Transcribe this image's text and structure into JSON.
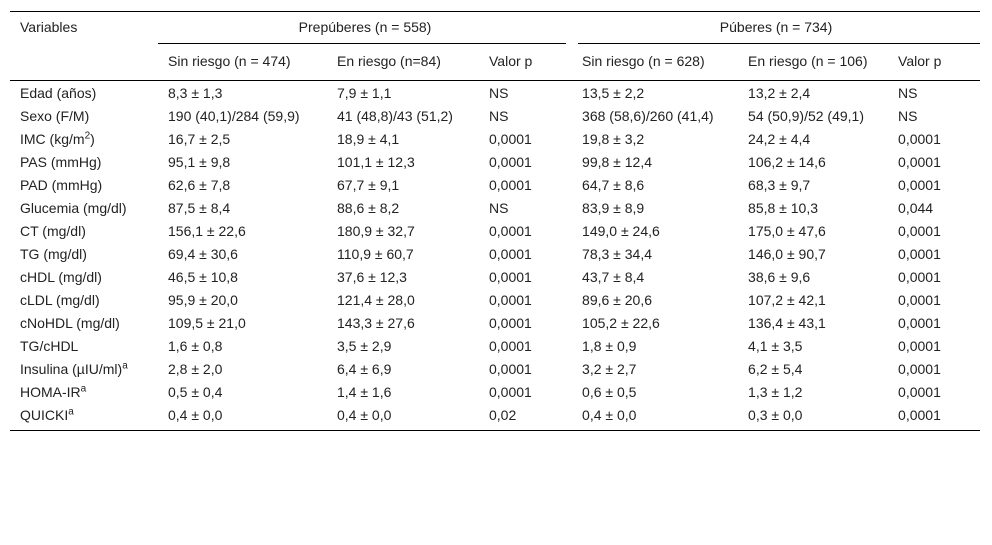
{
  "table": {
    "header": {
      "variables": "Variables",
      "groups": [
        {
          "label": "Prepúberes (n = 558)",
          "columns": [
            "Sin riesgo (n = 474)",
            "En riesgo (n=84)",
            "Valor p"
          ]
        },
        {
          "label": "Púberes (n = 734)",
          "columns": [
            "Sin riesgo (n = 628)",
            "En riesgo (n = 106)",
            "Valor p"
          ]
        }
      ]
    },
    "rows": [
      {
        "variable": {
          "text": "Edad (años)"
        },
        "cells": [
          "8,3 ± 1,3",
          "7,9 ± 1,1",
          "NS",
          "13,5 ± 2,2",
          "13,2 ± 2,4",
          "NS"
        ]
      },
      {
        "variable": {
          "text": "Sexo (F/M)"
        },
        "cells": [
          "190 (40,1)/284 (59,9)",
          "41 (48,8)/43 (51,2)",
          "NS",
          "368 (58,6)/260 (41,4)",
          "54 (50,9)/52 (49,1)",
          "NS"
        ]
      },
      {
        "variable": {
          "text": "IMC (kg/m",
          "sup": "2",
          "tail": ")"
        },
        "cells": [
          "16,7 ± 2,5",
          "18,9 ± 4,1",
          "0,0001",
          "19,8 ± 3,2",
          "24,2 ± 4,4",
          "0,0001"
        ]
      },
      {
        "variable": {
          "text": "PAS (mmHg)"
        },
        "cells": [
          "95,1 ± 9,8",
          "101,1 ± 12,3",
          "0,0001",
          "99,8 ± 12,4",
          "106,2 ± 14,6",
          "0,0001"
        ]
      },
      {
        "variable": {
          "text": "PAD (mmHg)"
        },
        "cells": [
          "62,6 ± 7,8",
          "67,7 ± 9,1",
          "0,0001",
          "64,7 ± 8,6",
          "68,3 ± 9,7",
          "0,0001"
        ]
      },
      {
        "variable": {
          "text": "Glucemia (mg/dl)"
        },
        "cells": [
          "87,5 ± 8,4",
          "88,6 ± 8,2",
          "NS",
          "83,9 ± 8,9",
          "85,8 ± 10,3",
          "0,044"
        ]
      },
      {
        "variable": {
          "text": "CT (mg/dl)"
        },
        "cells": [
          "156,1 ± 22,6",
          "180,9 ± 32,7",
          "0,0001",
          "149,0 ± 24,6",
          "175,0 ± 47,6",
          "0,0001"
        ]
      },
      {
        "variable": {
          "text": "TG (mg/dl)"
        },
        "cells": [
          "69,4 ± 30,6",
          "110,9 ± 60,7",
          "0,0001",
          "78,3 ± 34,4",
          "146,0 ± 90,7",
          "0,0001"
        ]
      },
      {
        "variable": {
          "text": "cHDL (mg/dl)"
        },
        "cells": [
          "46,5 ± 10,8",
          "37,6 ± 12,3",
          "0,0001",
          "43,7 ± 8,4",
          "38,6 ± 9,6",
          "0,0001"
        ]
      },
      {
        "variable": {
          "text": "cLDL (mg/dl)"
        },
        "cells": [
          "95,9 ± 20,0",
          "121,4 ± 28,0",
          "0,0001",
          "89,6 ± 20,6",
          "107,2 ± 42,1",
          "0,0001"
        ]
      },
      {
        "variable": {
          "text": "cNoHDL (mg/dl)"
        },
        "cells": [
          "109,5 ± 21,0",
          "143,3 ± 27,6",
          "0,0001",
          "105,2 ± 22,6",
          "136,4 ± 43,1",
          "0,0001"
        ]
      },
      {
        "variable": {
          "text": "TG/cHDL"
        },
        "cells": [
          "1,6 ± 0,8",
          "3,5 ± 2,9",
          "0,0001",
          "1,8 ± 0,9",
          "4,1 ± 3,5",
          "0,0001"
        ]
      },
      {
        "variable": {
          "text": "Insulina (µIU/ml)",
          "sup": "a"
        },
        "cells": [
          "2,8 ± 2,0",
          "6,4 ± 6,9",
          "0,0001",
          "3,2 ± 2,7",
          "6,2 ± 5,4",
          "0,0001"
        ]
      },
      {
        "variable": {
          "text": "HOMA-IR",
          "sup": "a"
        },
        "cells": [
          "0,5 ± 0,4",
          "1,4 ± 1,6",
          "0,0001",
          "0,6 ± 0,5",
          "1,3 ± 1,2",
          "0,0001"
        ]
      },
      {
        "variable": {
          "text": "QUICKI",
          "sup": "a"
        },
        "cells": [
          "0,4 ± 0,0",
          "0,4 ± 0,0",
          "0,02",
          "0,4 ± 0,0",
          "0,3 ± 0,0",
          "0,0001"
        ]
      }
    ]
  }
}
